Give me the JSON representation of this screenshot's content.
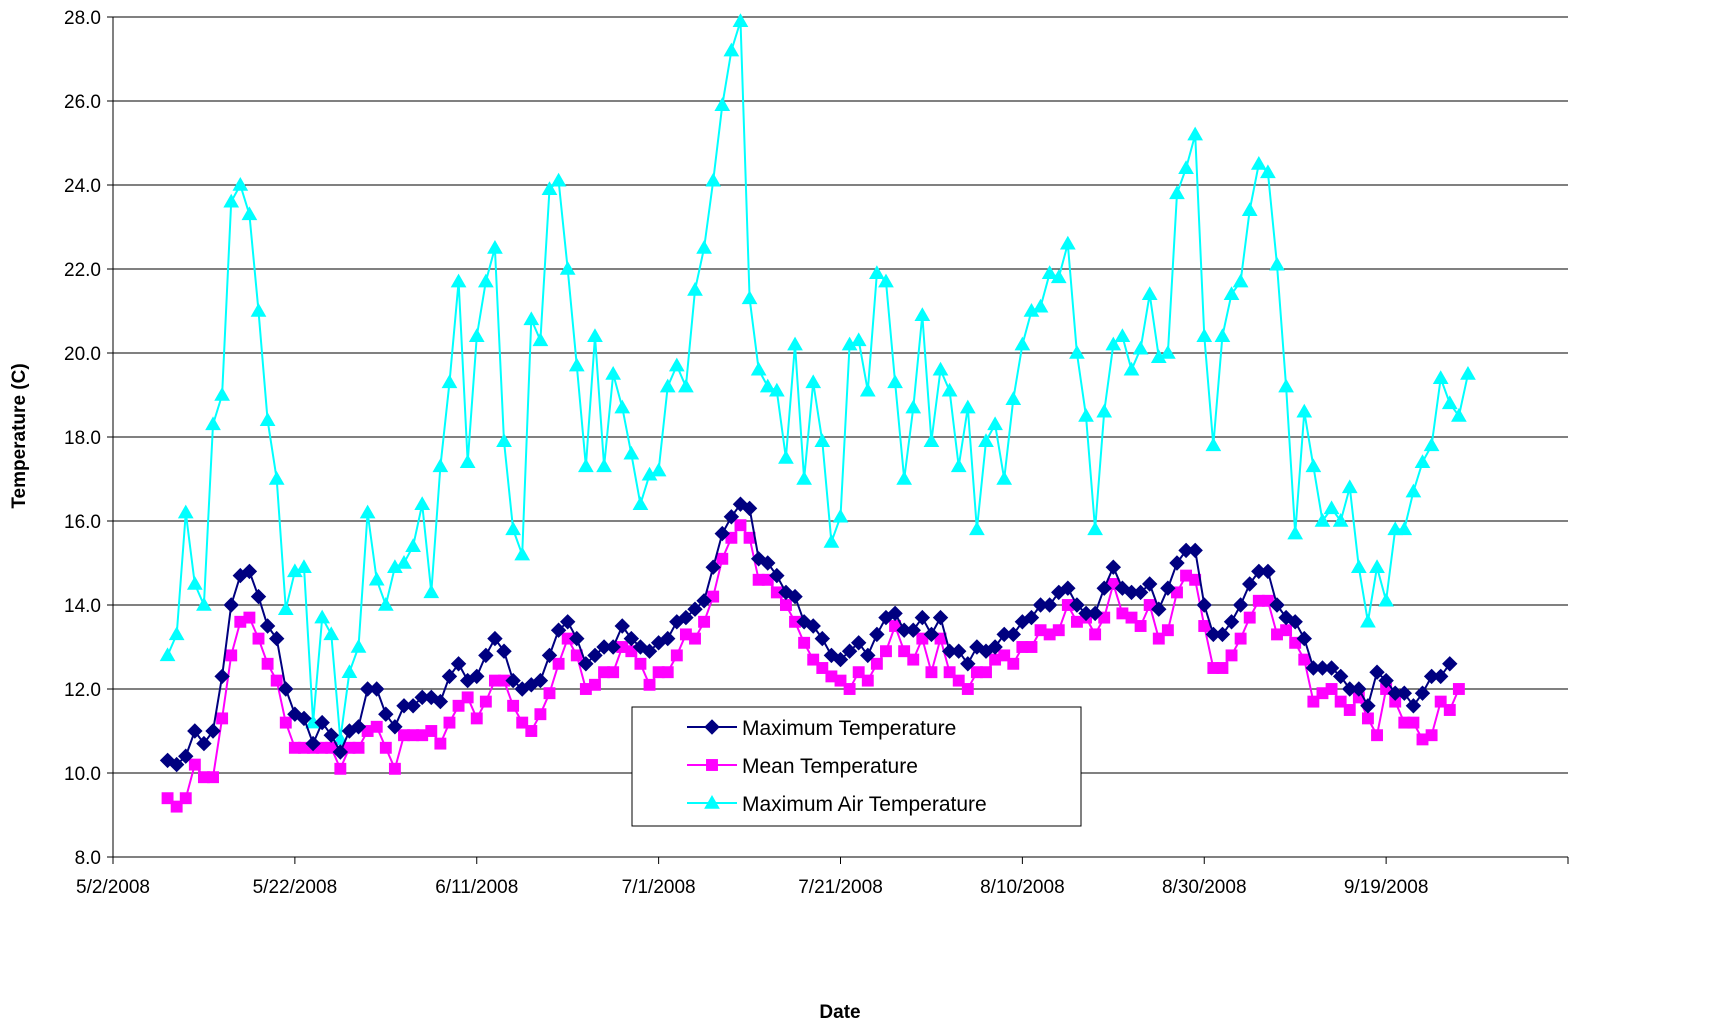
{
  "chart_data": {
    "type": "line",
    "title": "",
    "xlabel": "Date",
    "ylabel": "Temperature (C)",
    "x_start": "2008-05-02",
    "x_end": "2008-10-09",
    "ylim": [
      8.0,
      28.0
    ],
    "grid": "horizontal",
    "legend_position": "bottom-center",
    "x_tick_labels": [
      "5/2/2008",
      "5/22/2008",
      "6/11/2008",
      "7/1/2008",
      "7/21/2008",
      "8/10/2008",
      "8/30/2008",
      "9/19/2008"
    ],
    "y_tick_labels": [
      "8.0",
      "10.0",
      "12.0",
      "14.0",
      "16.0",
      "18.0",
      "20.0",
      "22.0",
      "24.0",
      "26.0",
      "28.0"
    ],
    "first_date": "2008-05-08",
    "series": [
      {
        "name": "Maximum Temperature",
        "color": "#000080",
        "marker": "diamond",
        "values": [
          10.3,
          10.2,
          10.4,
          11.0,
          10.7,
          11.0,
          12.3,
          14.0,
          14.7,
          14.8,
          14.2,
          13.5,
          13.2,
          12.0,
          11.4,
          11.3,
          10.7,
          11.2,
          10.9,
          10.5,
          11.0,
          11.1,
          12.0,
          12.0,
          11.4,
          11.1,
          11.6,
          11.6,
          11.8,
          11.8,
          11.7,
          12.3,
          12.6,
          12.2,
          12.3,
          12.8,
          13.2,
          12.9,
          12.2,
          12.0,
          12.1,
          12.2,
          12.8,
          13.4,
          13.6,
          13.2,
          12.6,
          12.8,
          13.0,
          13.0,
          13.5,
          13.2,
          13.0,
          12.9,
          13.1,
          13.2,
          13.6,
          13.7,
          13.9,
          14.1,
          14.9,
          15.7,
          16.1,
          16.4,
          16.3,
          15.1,
          15.0,
          14.7,
          14.3,
          14.2,
          13.6,
          13.5,
          13.2,
          12.8,
          12.7,
          12.9,
          13.1,
          12.8,
          13.3,
          13.7,
          13.8,
          13.4,
          13.4,
          13.7,
          13.3,
          13.7,
          12.9,
          12.9,
          12.6,
          13.0,
          12.9,
          13.0,
          13.3,
          13.3,
          13.6,
          13.7,
          14.0,
          14.0,
          14.3,
          14.4,
          14.0,
          13.8,
          13.8,
          14.4,
          14.9,
          14.4,
          14.3,
          14.3,
          14.5,
          13.9,
          14.4,
          15.0,
          15.3,
          15.3,
          14.0,
          13.3,
          13.3,
          13.6,
          14.0,
          14.5,
          14.8,
          14.8,
          14.0,
          13.7,
          13.6,
          13.2,
          12.5,
          12.5,
          12.5,
          12.3,
          12.0,
          12.0,
          11.6,
          12.4,
          12.2,
          11.9,
          11.9,
          11.6,
          11.9,
          12.3,
          12.3,
          12.6
        ]
      },
      {
        "name": "Mean Temperature",
        "color": "#ff00ff",
        "marker": "square",
        "values": [
          9.4,
          9.2,
          9.4,
          10.2,
          9.9,
          9.9,
          11.3,
          12.8,
          13.6,
          13.7,
          13.2,
          12.6,
          12.2,
          11.2,
          10.6,
          10.6,
          10.6,
          10.6,
          10.6,
          10.1,
          10.6,
          10.6,
          11.0,
          11.1,
          10.6,
          10.1,
          10.9,
          10.9,
          10.9,
          11.0,
          10.7,
          11.2,
          11.6,
          11.8,
          11.3,
          11.7,
          12.2,
          12.2,
          11.6,
          11.2,
          11.0,
          11.4,
          11.9,
          12.6,
          13.2,
          12.8,
          12.0,
          12.1,
          12.4,
          12.4,
          13.0,
          12.9,
          12.6,
          12.1,
          12.4,
          12.4,
          12.8,
          13.3,
          13.2,
          13.6,
          14.2,
          15.1,
          15.6,
          15.9,
          15.6,
          14.6,
          14.6,
          14.3,
          14.0,
          13.6,
          13.1,
          12.7,
          12.5,
          12.3,
          12.2,
          12.0,
          12.4,
          12.2,
          12.6,
          12.9,
          13.5,
          12.9,
          12.7,
          13.2,
          12.4,
          13.2,
          12.4,
          12.2,
          12.0,
          12.4,
          12.4,
          12.7,
          12.8,
          12.6,
          13.0,
          13.0,
          13.4,
          13.3,
          13.4,
          14.0,
          13.6,
          13.7,
          13.3,
          13.7,
          14.5,
          13.8,
          13.7,
          13.5,
          14.0,
          13.2,
          13.4,
          14.3,
          14.7,
          14.6,
          13.5,
          12.5,
          12.5,
          12.8,
          13.2,
          13.7,
          14.1,
          14.1,
          13.3,
          13.4,
          13.1,
          12.7,
          11.7,
          11.9,
          12.0,
          11.7,
          11.5,
          11.8,
          11.3,
          10.9,
          12.0,
          11.7,
          11.2,
          11.2,
          10.8,
          10.9,
          11.7,
          11.5,
          12.0
        ]
      },
      {
        "name": "Maximum Air Temperature",
        "color": "#00ffff",
        "marker": "triangle",
        "values": [
          12.8,
          13.3,
          16.2,
          14.5,
          14.0,
          18.3,
          19.0,
          23.6,
          24.0,
          23.3,
          21.0,
          18.4,
          17.0,
          13.9,
          14.8,
          14.9,
          11.2,
          13.7,
          13.3,
          10.8,
          12.4,
          13.0,
          16.2,
          14.6,
          14.0,
          14.9,
          15.0,
          15.4,
          16.4,
          14.3,
          17.3,
          19.3,
          21.7,
          17.4,
          20.4,
          21.7,
          22.5,
          17.9,
          15.8,
          15.2,
          20.8,
          20.3,
          23.9,
          24.1,
          22.0,
          19.7,
          17.3,
          20.4,
          17.3,
          19.5,
          18.7,
          17.6,
          16.4,
          17.1,
          17.2,
          19.2,
          19.7,
          19.2,
          21.5,
          22.5,
          24.1,
          25.9,
          27.2,
          27.9,
          21.3,
          19.6,
          19.2,
          19.1,
          17.5,
          20.2,
          17.0,
          19.3,
          17.9,
          15.5,
          16.1,
          20.2,
          20.3,
          19.1,
          21.9,
          21.7,
          19.3,
          17.0,
          18.7,
          20.9,
          17.9,
          19.6,
          19.1,
          17.3,
          18.7,
          15.8,
          17.9,
          18.3,
          17.0,
          18.9,
          20.2,
          21.0,
          21.1,
          21.9,
          21.8,
          22.6,
          20.0,
          18.5,
          15.8,
          18.6,
          20.2,
          20.4,
          19.6,
          20.1,
          21.4,
          19.9,
          20.0,
          23.8,
          24.4,
          25.2,
          20.4,
          17.8,
          20.4,
          21.4,
          21.7,
          23.4,
          24.5,
          24.3,
          22.1,
          19.2,
          15.7,
          18.6,
          17.3,
          16.0,
          16.3,
          16.0,
          16.8,
          14.9,
          13.6,
          14.9,
          14.1,
          15.8,
          15.8,
          16.7,
          17.4,
          17.8,
          19.4,
          18.8,
          18.5,
          19.5
        ]
      }
    ]
  }
}
